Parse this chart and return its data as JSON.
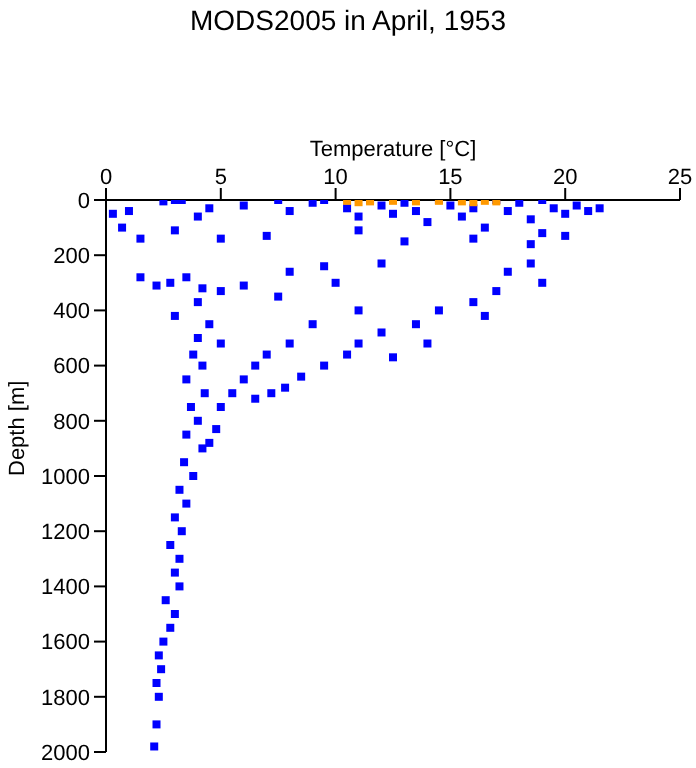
{
  "chart_data": {
    "type": "scatter",
    "title": "MODS2005 in April, 1953",
    "xlabel": "Temperature [°C]",
    "ylabel": "Depth [m]",
    "xlim": [
      0,
      25
    ],
    "xticks": [
      0,
      5,
      10,
      15,
      20,
      25
    ],
    "ylim": [
      2000,
      0
    ],
    "yticks": [
      0,
      200,
      400,
      600,
      800,
      1000,
      1200,
      1400,
      1600,
      1800,
      2000
    ],
    "marker": "square",
    "series": [
      {
        "color": "#0000ff",
        "x": [
          0.3,
          1,
          2.5,
          3,
          3.3,
          4.5,
          6,
          7.5,
          8,
          9,
          9.5,
          10.5,
          11,
          11.5,
          12,
          12.5,
          13,
          13.5,
          14,
          14.5,
          15,
          15.5,
          16,
          16.5,
          17,
          17.5,
          18,
          18.5,
          19,
          19.5,
          20,
          20.5,
          21,
          21.5,
          19,
          18.5,
          20,
          16,
          13,
          11,
          7,
          5,
          4,
          0.7,
          1.5,
          3,
          1.5,
          2.2,
          2.8,
          3.5,
          4.2,
          5,
          6,
          4,
          3,
          4.5,
          4,
          5,
          3.8,
          4.2,
          3.5,
          4.3,
          3.7,
          4,
          3.5,
          4.2,
          3.4,
          3.8,
          3.2,
          3.5,
          3,
          3.3,
          2.8,
          3.2,
          3,
          3.2,
          2.6,
          3,
          2.8,
          2.5,
          2.3,
          2.4,
          2.2,
          2.3,
          2.2,
          2.1,
          8,
          9.5,
          12,
          10,
          7.5,
          11,
          9,
          8,
          7,
          6.5,
          6,
          5.5,
          5,
          6.5,
          4.8,
          4.5,
          18.5,
          17.5,
          19,
          17,
          16,
          14.5,
          16.5,
          13.5,
          12,
          11,
          10.5,
          9.5,
          8.5,
          7.8,
          7.2,
          12.5,
          14
        ],
        "values": [
          50,
          40,
          5,
          0,
          0,
          30,
          20,
          0,
          40,
          10,
          0,
          30,
          60,
          0,
          20,
          50,
          10,
          40,
          80,
          0,
          20,
          60,
          30,
          100,
          0,
          40,
          10,
          70,
          0,
          30,
          50,
          20,
          40,
          30,
          120,
          160,
          130,
          140,
          150,
          110,
          130,
          140,
          60,
          100,
          140,
          110,
          280,
          310,
          300,
          280,
          320,
          330,
          310,
          370,
          420,
          450,
          500,
          520,
          560,
          600,
          650,
          700,
          750,
          800,
          850,
          900,
          950,
          1000,
          1050,
          1100,
          1150,
          1200,
          1250,
          1300,
          1350,
          1400,
          1450,
          1500,
          1550,
          1600,
          1650,
          1700,
          1750,
          1800,
          1900,
          1980,
          260,
          240,
          230,
          300,
          350,
          400,
          450,
          520,
          560,
          600,
          650,
          700,
          750,
          720,
          830,
          880,
          230,
          260,
          300,
          330,
          370,
          400,
          420,
          450,
          480,
          520,
          560,
          600,
          640,
          680,
          700,
          570,
          520
        ]
      },
      {
        "color": "#ff9900",
        "x": [
          10.5,
          11.5,
          12.5,
          13.5,
          14.5,
          15.5,
          16.5,
          17,
          11,
          16
        ],
        "values": [
          3,
          5,
          3,
          5,
          3,
          5,
          3,
          5,
          8,
          8
        ]
      }
    ]
  }
}
